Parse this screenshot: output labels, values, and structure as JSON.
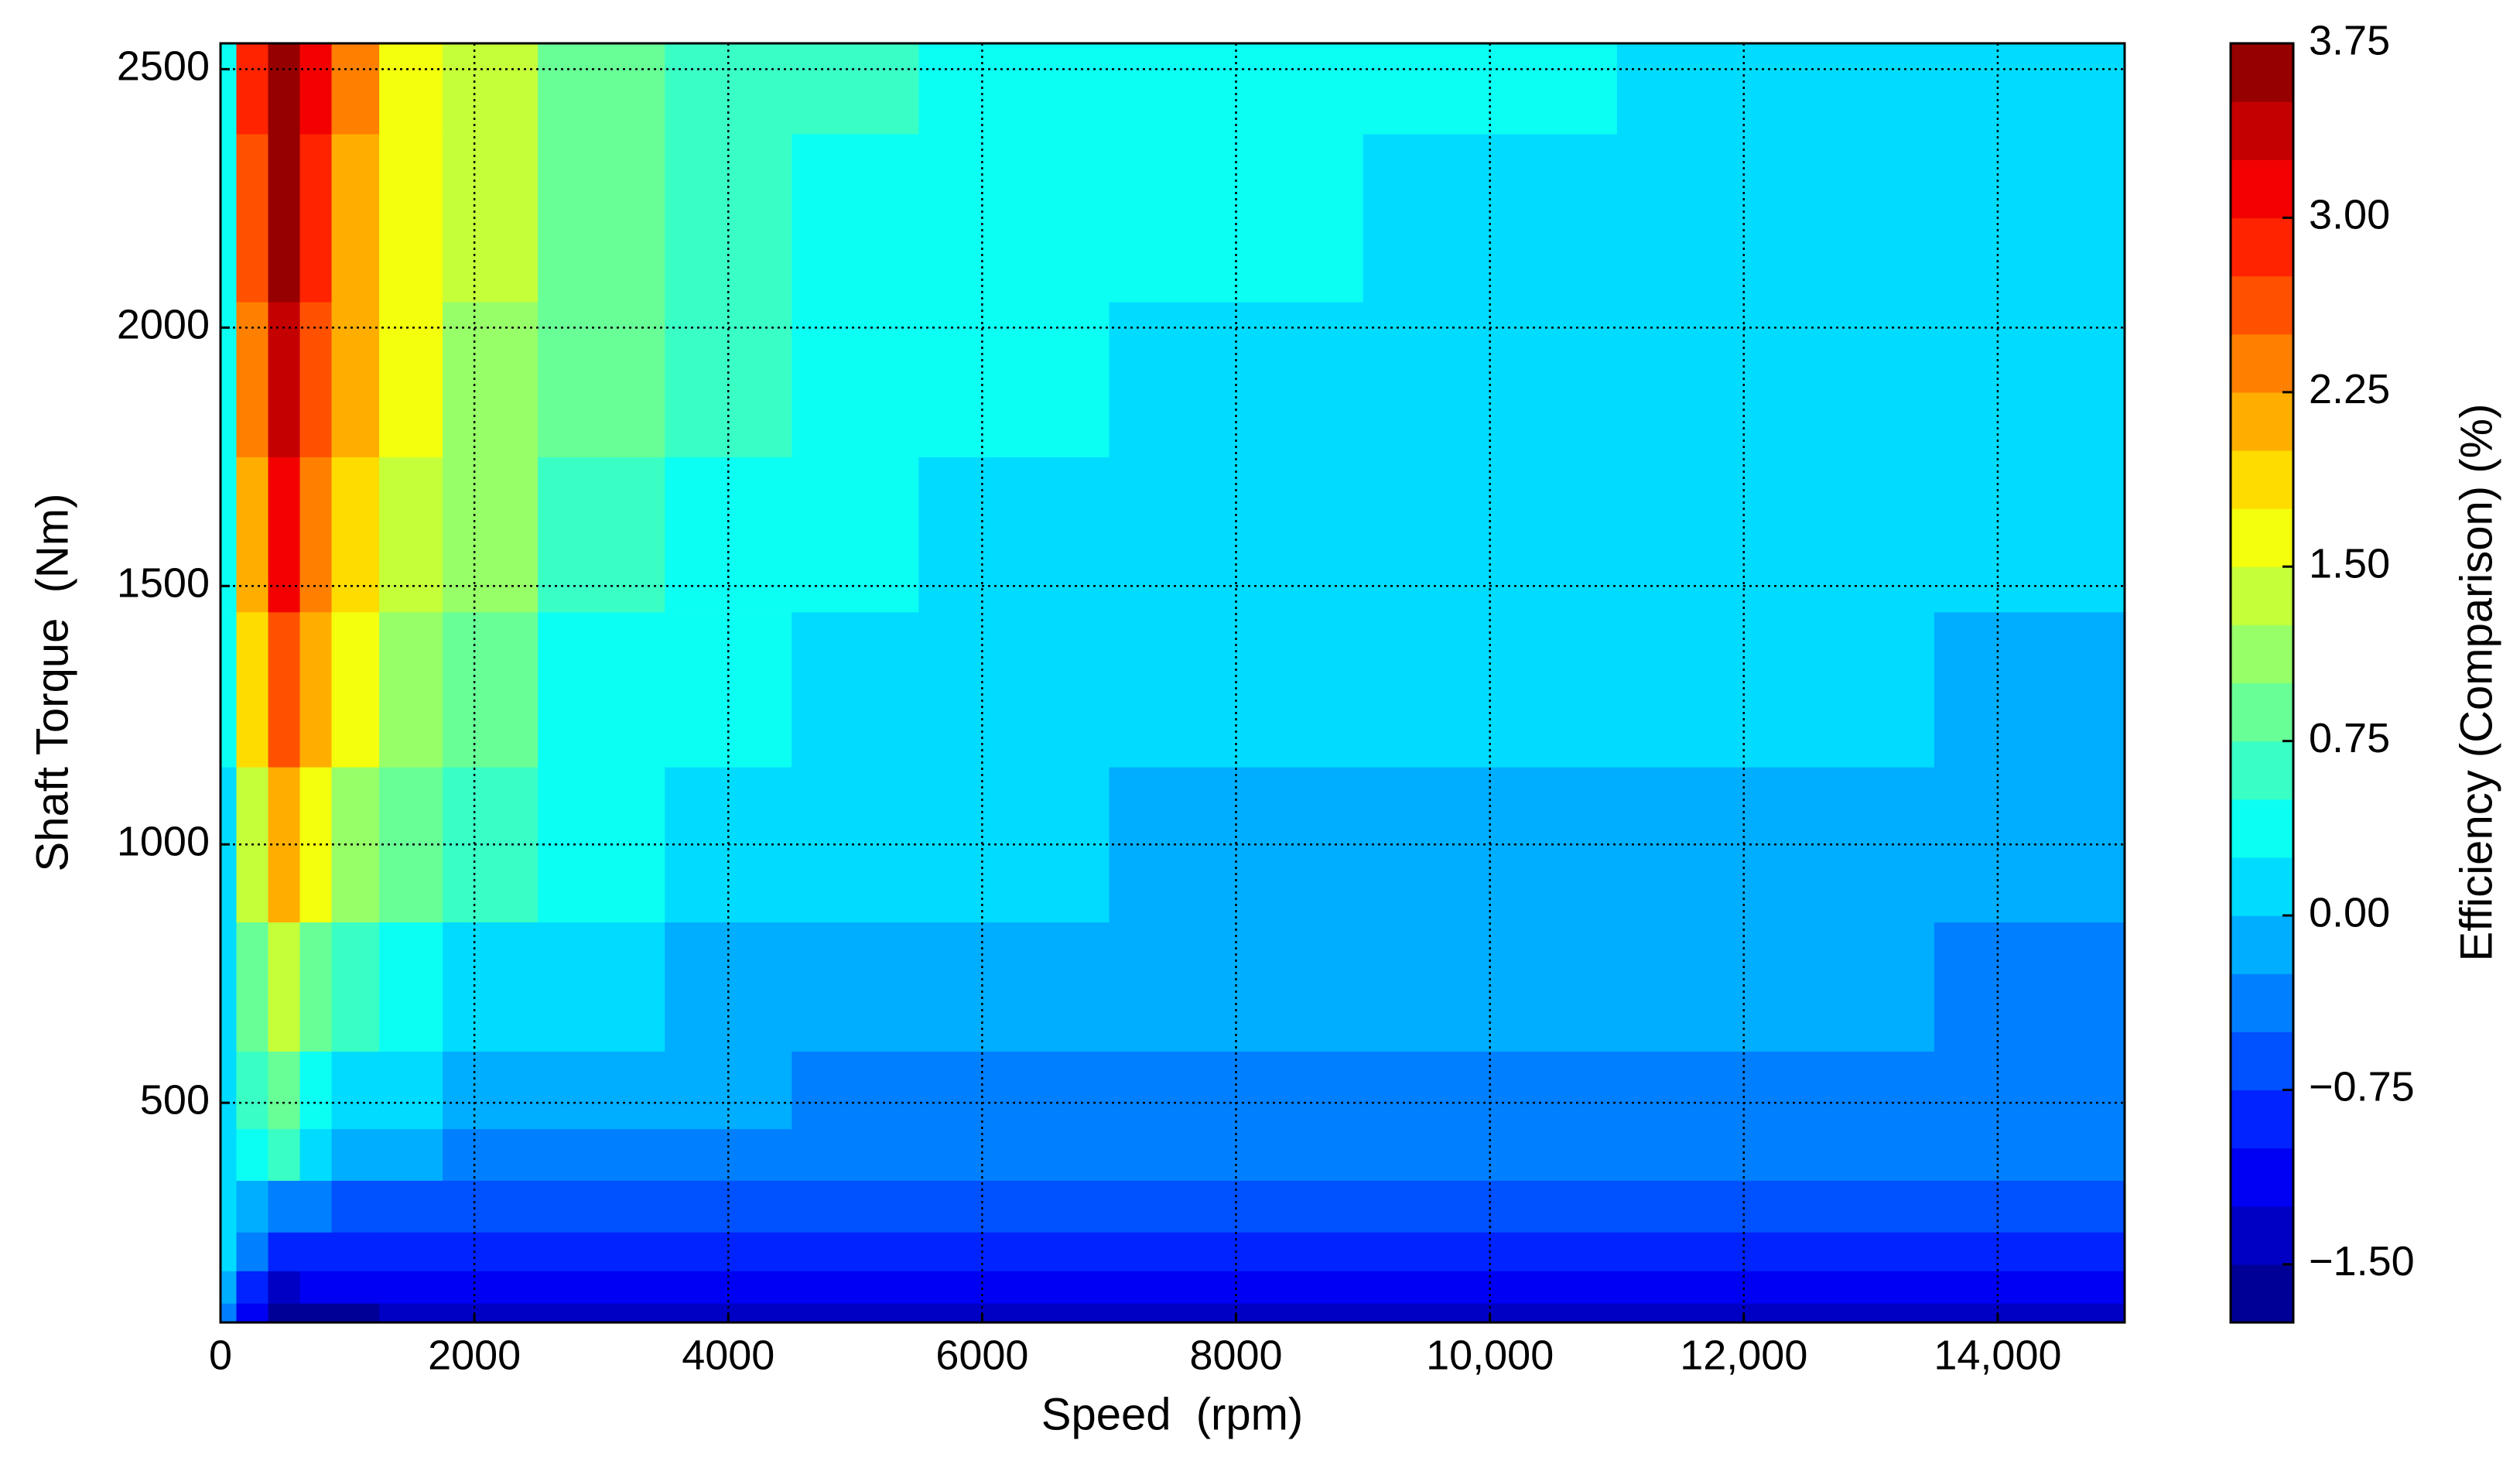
{
  "chart_data": {
    "type": "contour",
    "x_label": "Speed  (rpm)",
    "y_label": "Shaft Torque  (Nm)",
    "colorbar_label": "Efficiency (Comparison) (%)",
    "colormap": "jet",
    "grid": true,
    "x": [
      0,
      250,
      500,
      750,
      1000,
      1500,
      2000,
      3000,
      4000,
      5000,
      6000,
      8000,
      10000,
      12000,
      15000
    ],
    "y": [
      75,
      150,
      200,
      300,
      400,
      500,
      700,
      1000,
      1300,
      1600,
      1900,
      2200,
      2550
    ],
    "z": [
      [
        -0.3,
        -1.2,
        -1.6,
        -1.55,
        -1.55,
        -1.5,
        -1.5,
        -1.5,
        -1.5,
        -1.5,
        -1.5,
        -1.5,
        -1.5,
        -1.5,
        -1.5
      ],
      [
        -0.1,
        -0.8,
        -1.3,
        -1.25,
        -1.2,
        -1.2,
        -1.2,
        -1.15,
        -1.15,
        -1.15,
        -1.15,
        -1.15,
        -1.15,
        -1.15,
        -1.15
      ],
      [
        0.0,
        -0.5,
        -1.0,
        -0.95,
        -0.95,
        -0.9,
        -0.9,
        -0.9,
        -0.9,
        -0.9,
        -0.9,
        -0.9,
        -0.9,
        -0.9,
        -0.9
      ],
      [
        0.05,
        -0.1,
        -0.35,
        -0.45,
        -0.55,
        -0.6,
        -0.62,
        -0.65,
        -0.65,
        -0.68,
        -0.68,
        -0.7,
        -0.7,
        -0.7,
        -0.7
      ],
      [
        0.1,
        0.3,
        0.5,
        0.1,
        -0.1,
        -0.2,
        -0.3,
        -0.35,
        -0.4,
        -0.42,
        -0.45,
        -0.45,
        -0.45,
        -0.45,
        -0.47
      ],
      [
        0.1,
        0.5,
        0.75,
        0.3,
        0.2,
        0.0,
        -0.1,
        -0.2,
        -0.25,
        -0.3,
        -0.35,
        -0.4,
        -0.4,
        -0.4,
        -0.42
      ],
      [
        0.1,
        0.9,
        1.3,
        0.9,
        0.7,
        0.35,
        0.1,
        0.0,
        -0.05,
        -0.1,
        -0.15,
        -0.2,
        -0.25,
        -0.25,
        -0.3
      ],
      [
        0.2,
        1.3,
        2.0,
        1.6,
        1.2,
        0.8,
        0.55,
        0.25,
        0.1,
        0.05,
        0.0,
        -0.05,
        -0.05,
        -0.1,
        -0.1
      ],
      [
        0.3,
        1.8,
        2.6,
        2.0,
        1.6,
        1.1,
        0.8,
        0.45,
        0.25,
        0.15,
        0.1,
        0.05,
        0.02,
        0.0,
        -0.02
      ],
      [
        0.3,
        2.1,
        3.0,
        2.3,
        1.8,
        1.3,
        1.0,
        0.6,
        0.4,
        0.25,
        0.2,
        0.1,
        0.08,
        0.05,
        0.05
      ],
      [
        0.35,
        2.4,
        3.3,
        2.6,
        2.0,
        1.5,
        1.1,
        0.75,
        0.5,
        0.35,
        0.27,
        0.2,
        0.12,
        0.1,
        0.08
      ],
      [
        0.4,
        2.6,
        3.5,
        2.8,
        2.2,
        1.6,
        1.25,
        0.8,
        0.6,
        0.45,
        0.35,
        0.26,
        0.2,
        0.15,
        0.12
      ],
      [
        0.4,
        2.8,
        3.7,
        3.0,
        2.3,
        1.7,
        1.3,
        0.9,
        0.7,
        0.5,
        0.4,
        0.3,
        0.25,
        0.2,
        0.15
      ]
    ],
    "xlim": [
      0,
      15000
    ],
    "ylim": [
      75,
      2550
    ],
    "xticks": [
      0,
      2000,
      4000,
      6000,
      8000,
      {
        "value": 10000,
        "label": "10,000"
      },
      {
        "value": 12000,
        "label": "12,000"
      },
      {
        "value": 14000,
        "label": "14,000"
      }
    ],
    "yticks": [
      500,
      1000,
      1500,
      2000,
      2500
    ],
    "levels": [
      -1.75,
      -1.5,
      -1.25,
      -1.0,
      -0.75,
      -0.5,
      -0.25,
      0.0,
      0.25,
      0.5,
      0.75,
      1.0,
      1.25,
      1.5,
      1.75,
      2.0,
      2.25,
      2.5,
      2.75,
      3.0,
      3.25,
      3.5,
      3.75
    ],
    "colorbar_ticks": [
      {
        "value": -1.5,
        "label": "−1.50"
      },
      {
        "value": -0.75,
        "label": "−0.75"
      },
      {
        "value": 0,
        "label": "0.00"
      },
      {
        "value": 0.75,
        "label": "0.75"
      },
      {
        "value": 1.5,
        "label": "1.50"
      },
      {
        "value": 2.25,
        "label": "2.25"
      },
      {
        "value": 3,
        "label": "3.00"
      },
      {
        "value": 3.75,
        "label": "3.75"
      }
    ]
  }
}
